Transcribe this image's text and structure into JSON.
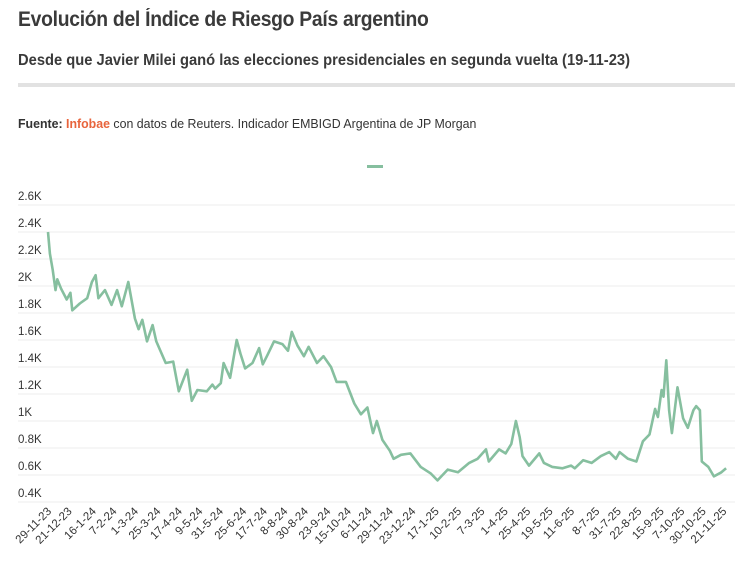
{
  "header": {
    "title": "Evolución del Índice de Riesgo País argentino",
    "subtitle": "Desde que Javier Milei ganó las elecciones presidenciales en segunda vuelta (19-11-23)",
    "source_label": "Fuente:",
    "source_brand": "Infobae",
    "source_rest": " con datos de Reuters. Indicador EMBIGD Argentina de JP Morgan"
  },
  "colors": {
    "line": "#86bf9f",
    "brand": "#e8643c",
    "grid": "#ececec"
  },
  "chart_data": {
    "type": "line",
    "title": "Evolución del Índice de Riesgo País argentino",
    "xlabel": "",
    "ylabel": "",
    "ylim": [
      0.4,
      2.6
    ],
    "yticks": [
      0.4,
      0.6,
      0.8,
      1.0,
      1.2,
      1.4,
      1.6,
      1.8,
      2.0,
      2.2,
      2.4,
      2.6
    ],
    "ytick_labels": [
      "0.4K",
      "0.6K",
      "0.8K",
      "1K",
      "1.2K",
      "1.4K",
      "1.6K",
      "1.8K",
      "2K",
      "2.2K",
      "2.4K",
      "2.6K"
    ],
    "xtick_labels": [
      "29-11-23",
      "21-12-23",
      "16-1-24",
      "7-2-24",
      "1-3-24",
      "25-3-24",
      "17-4-24",
      "9-5-24",
      "31-5-24",
      "25-6-24",
      "17-7-24",
      "8-8-24",
      "30-8-24",
      "23-9-24",
      "15-10-24",
      "6-11-24",
      "29-11-24",
      "23-12-24",
      "17-1-25",
      "10-2-25",
      "7-3-25",
      "1-4-25",
      "25-4-25",
      "19-5-25",
      "11-6-25",
      "8-7-25",
      "31-7-25",
      "22-8-25",
      "15-9-25",
      "7-10-25",
      "30-10-25",
      "21-11-25"
    ],
    "x_unit": "days since 29-11-23",
    "grid": true,
    "legend": "top-center",
    "series": [
      {
        "name": "",
        "x": [
          0,
          2,
          5,
          8,
          10,
          14,
          20,
          24,
          26,
          34,
          42,
          47,
          51,
          54,
          61,
          68,
          74,
          79,
          86,
          93,
          97,
          101,
          106,
          112,
          116,
          126,
          134,
          140,
          149,
          154,
          160,
          170,
          176,
          179,
          185,
          188,
          195,
          202,
          206,
          211,
          219,
          226,
          230,
          235,
          242,
          251,
          257,
          261,
          267,
          274,
          279,
          288,
          295,
          303,
          309,
          319,
          328,
          335,
          342,
          348,
          352,
          358,
          366,
          370,
          378,
          388,
          399,
          410,
          417,
          428,
          439,
          451,
          460,
          469,
          472,
          483,
          490,
          496,
          501,
          505,
          508,
          515,
          526,
          531,
          540,
          551,
          560,
          564,
          573,
          582,
          592,
          601,
          608,
          612,
          621,
          630,
          637,
          644,
          650,
          653,
          657,
          659,
          662,
          665,
          668,
          674,
          680,
          685,
          691,
          694,
          698,
          700,
          707,
          713,
          721,
          726
        ],
        "values": [
          2.4,
          2.24,
          2.12,
          1.97,
          2.05,
          1.98,
          1.9,
          1.95,
          1.82,
          1.87,
          1.91,
          2.03,
          2.08,
          1.91,
          1.97,
          1.86,
          1.97,
          1.85,
          2.03,
          1.76,
          1.68,
          1.75,
          1.59,
          1.71,
          1.59,
          1.43,
          1.44,
          1.22,
          1.38,
          1.15,
          1.23,
          1.22,
          1.27,
          1.24,
          1.28,
          1.43,
          1.32,
          1.6,
          1.5,
          1.39,
          1.43,
          1.54,
          1.42,
          1.49,
          1.59,
          1.57,
          1.52,
          1.66,
          1.56,
          1.48,
          1.55,
          1.43,
          1.48,
          1.4,
          1.29,
          1.29,
          1.13,
          1.05,
          1.1,
          0.91,
          1.0,
          0.86,
          0.78,
          0.72,
          0.75,
          0.76,
          0.66,
          0.61,
          0.56,
          0.64,
          0.62,
          0.69,
          0.72,
          0.79,
          0.7,
          0.79,
          0.76,
          0.83,
          1.0,
          0.88,
          0.74,
          0.67,
          0.76,
          0.69,
          0.66,
          0.65,
          0.67,
          0.65,
          0.71,
          0.69,
          0.74,
          0.77,
          0.72,
          0.77,
          0.72,
          0.7,
          0.85,
          0.9,
          1.09,
          1.03,
          1.23,
          1.18,
          1.45,
          1.08,
          0.91,
          1.25,
          1.02,
          0.95,
          1.08,
          1.11,
          1.08,
          0.7,
          0.66,
          0.59,
          0.62,
          0.65
        ]
      }
    ]
  }
}
